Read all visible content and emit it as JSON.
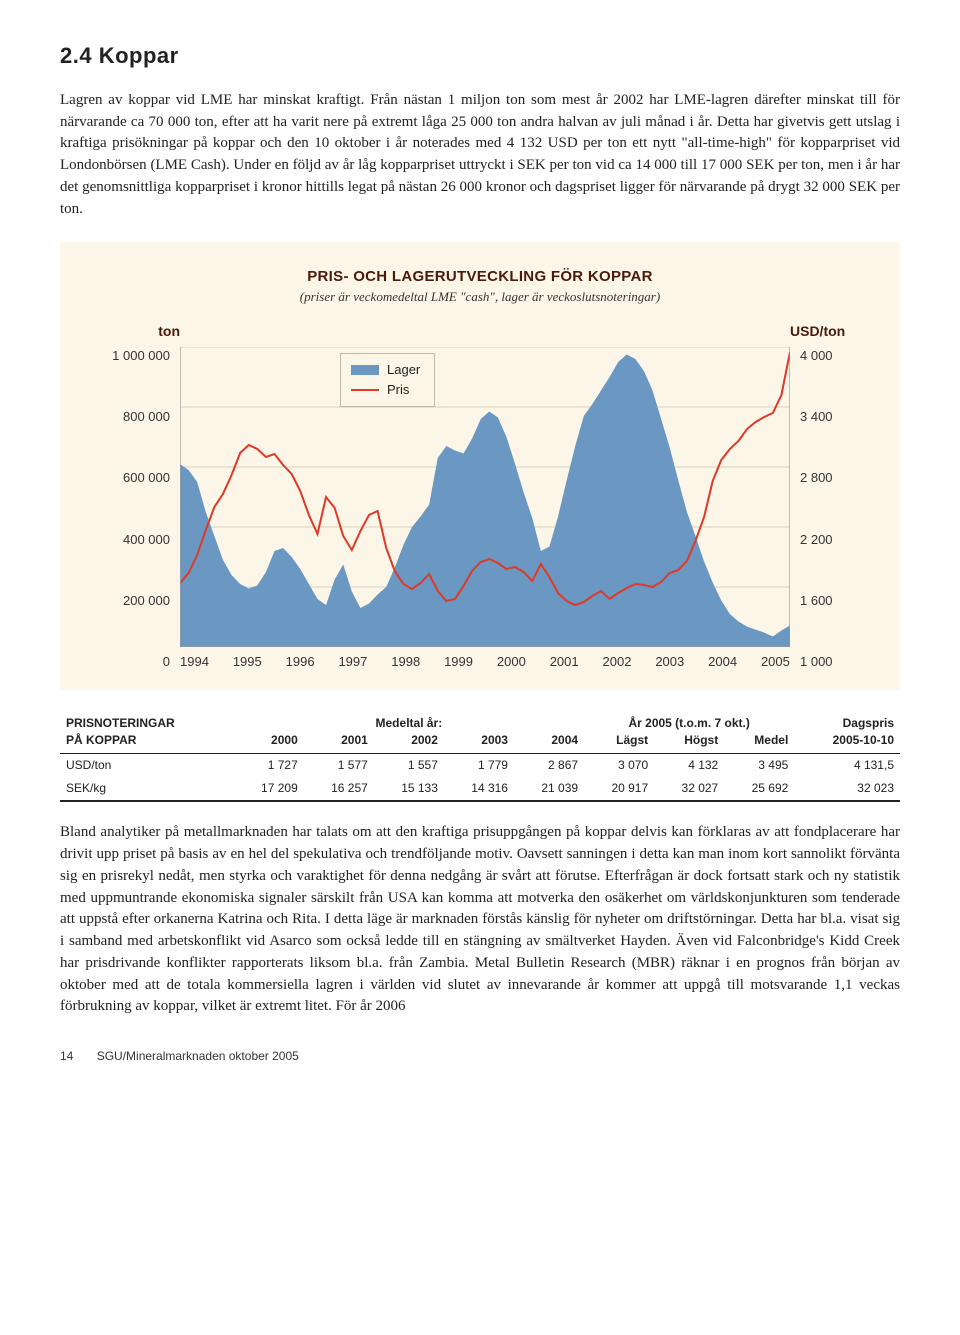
{
  "heading": "2.4   Koppar",
  "para1": "Lagren av koppar vid LME har minskat kraftigt. Från nästan 1 miljon ton som mest år 2002 har LME-lagren därefter minskat till för närvarande ca 70 000 ton, efter att ha varit nere på extremt låga 25 000 ton andra halvan av juli månad i år. Detta har givetvis gett utslag i kraftiga prisökningar på koppar och den 10 oktober i år noterades med 4 132 USD per ton ett nytt \"all-time-high\" för kopparpriset vid Londonbörsen (LME Cash). Under en följd av år låg kopparpriset uttryckt i SEK per ton vid ca 14 000 till 17 000 SEK per ton, men i år har det genomsnittliga kopparpriset i kronor hittills legat på nästan 26 000 kronor och dagspriset ligger för närvarande på drygt 32 000 SEK per ton.",
  "chart": {
    "title": "PRIS- OCH LAGERUTVECKLING FÖR KOPPAR",
    "subtitle": "(priser är veckomedeltal LME \"cash\", lager är veckoslutsnoteringar)",
    "left_unit": "ton",
    "right_unit": "USD/ton",
    "left_ticks": [
      "1 000 000",
      "800 000",
      "600 000",
      "400 000",
      "200 000",
      "0"
    ],
    "right_ticks": [
      "4 000",
      "3 400",
      "2 800",
      "2 200",
      "1 600",
      "1 000"
    ],
    "x_labels": [
      "1994",
      "1995",
      "1996",
      "1997",
      "1998",
      "1999",
      "2000",
      "2001",
      "2002",
      "2003",
      "2004",
      "2005"
    ],
    "legend_lager": "Lager",
    "legend_pris": "Pris",
    "colors": {
      "bg": "#fcf6e8",
      "grid": "#d9d2bb",
      "lager_fill": "#6a98c2",
      "pris_stroke": "#de3a2a",
      "title_color": "#4a1a0a"
    },
    "lager_values": [
      610,
      590,
      550,
      450,
      370,
      290,
      240,
      210,
      195,
      205,
      250,
      320,
      330,
      300,
      260,
      210,
      160,
      140,
      225,
      275,
      185,
      130,
      145,
      175,
      200,
      265,
      340,
      400,
      435,
      475,
      630,
      670,
      655,
      645,
      695,
      760,
      785,
      765,
      700,
      610,
      515,
      430,
      320,
      335,
      435,
      555,
      670,
      770,
      810,
      855,
      900,
      950,
      975,
      960,
      920,
      855,
      760,
      665,
      555,
      450,
      370,
      285,
      215,
      155,
      110,
      85,
      68,
      58,
      48,
      35,
      55,
      72
    ],
    "pris_values": [
      1640,
      1740,
      1920,
      2170,
      2400,
      2530,
      2720,
      2940,
      3020,
      2980,
      2900,
      2930,
      2820,
      2730,
      2560,
      2320,
      2130,
      2500,
      2390,
      2110,
      1970,
      2160,
      2320,
      2360,
      1990,
      1760,
      1630,
      1580,
      1640,
      1730,
      1560,
      1460,
      1480,
      1610,
      1760,
      1850,
      1880,
      1840,
      1780,
      1800,
      1750,
      1660,
      1830,
      1700,
      1540,
      1460,
      1420,
      1450,
      1510,
      1560,
      1480,
      1540,
      1590,
      1630,
      1620,
      1600,
      1650,
      1740,
      1770,
      1860,
      2060,
      2300,
      2660,
      2870,
      2980,
      3060,
      3180,
      3250,
      3300,
      3340,
      3520,
      3950
    ],
    "left_min": 0,
    "left_max": 1000,
    "right_min": 1000,
    "right_max": 4000
  },
  "table": {
    "hdr_left1": "PRISNOTERINGAR",
    "hdr_left2": "PÅ KOPPAR",
    "hdr_mid": "Medeltal år:",
    "hdr_right": "År 2005 (t.o.m. 7 okt.)",
    "hdr_dag": "Dagspris",
    "cols": [
      "2000",
      "2001",
      "2002",
      "2003",
      "2004",
      "Lägst",
      "Högst",
      "Medel",
      "2005-10-10"
    ],
    "rows": [
      {
        "label": "USD/ton",
        "cells": [
          "1 727",
          "1 577",
          "1 557",
          "1 779",
          "2 867",
          "3 070",
          "4 132",
          "3 495",
          "4 131,5"
        ]
      },
      {
        "label": "SEK/kg",
        "cells": [
          "17 209",
          "16 257",
          "15 133",
          "14 316",
          "21 039",
          "20 917",
          "32 027",
          "25 692",
          "32 023"
        ]
      }
    ]
  },
  "para2": "Bland analytiker på metallmarknaden har talats om att den kraftiga prisuppgången på koppar delvis kan förklaras av att fondplacerare har drivit upp priset på basis av en hel del spekulativa och trendföljande motiv. Oavsett sanningen i detta kan man inom kort sannolikt förvänta sig en prisrekyl nedåt, men styrka och varaktighet för denna nedgång är svårt att förutse. Efterfrågan är dock fortsatt stark och ny statistik med uppmuntrande ekonomiska signaler särskilt från USA kan komma att motverka den osäkerhet om världskonjunkturen som tenderade att uppstå efter orkanerna Katrina och Rita. I detta läge är marknaden förstås känslig för nyheter om driftstörningar. Detta har bl.a. visat sig i samband med arbetskonflikt vid Asarco som också ledde till en stängning av smältverket Hayden. Även vid Falconbridge's Kidd Creek har prisdrivande konflikter rapporterats liksom bl.a. från Zambia. Metal Bulletin Research (MBR) räknar i en prognos från början av oktober med att de totala kommersiella lagren i världen vid slutet av innevarande år kommer att uppgå till motsvarande 1,1 veckas förbrukning av koppar, vilket är extremt litet. För år 2006",
  "footer_page": "14",
  "footer_text": "SGU/Mineralmarknaden oktober 2005"
}
